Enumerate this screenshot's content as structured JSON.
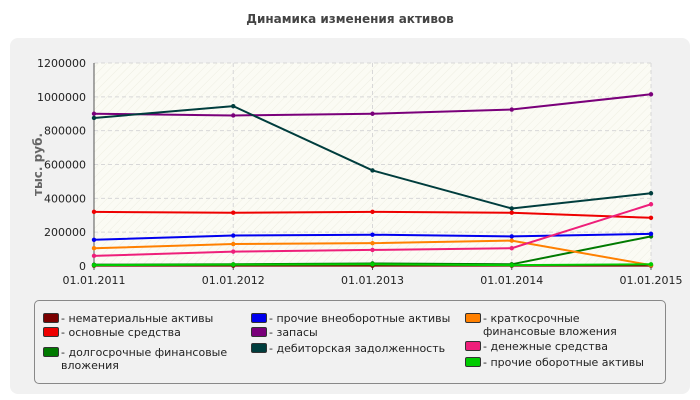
{
  "chart_data": {
    "type": "line",
    "title": "Динамика изменения активов",
    "xlabel": "",
    "ylabel": "тыс. руб.",
    "x": [
      "01.01.2011",
      "01.01.2012",
      "01.01.2013",
      "01.01.2014",
      "01.01.2015"
    ],
    "ylim": [
      0,
      1200000
    ],
    "yticks": [
      "0",
      "200000",
      "400000",
      "600000",
      "800000",
      "1000000",
      "1200000"
    ],
    "grid": true,
    "legend_position": "bottom",
    "series": [
      {
        "name": "- нематериальные активы",
        "color": "#7a0000",
        "values": [
          2000,
          2000,
          2000,
          2000,
          2000
        ]
      },
      {
        "name": "- основные средства",
        "color": "#ee0000",
        "values": [
          320000,
          315000,
          320000,
          315000,
          285000
        ]
      },
      {
        "name": "- долгосрочные финансовые вложения",
        "color": "#007a00",
        "values": [
          8000,
          10000,
          15000,
          10000,
          175000
        ]
      },
      {
        "name": "- прочие внеоборотные активы",
        "color": "#0000ee",
        "values": [
          155000,
          180000,
          185000,
          175000,
          190000
        ]
      },
      {
        "name": "- запасы",
        "color": "#7a007a",
        "values": [
          900000,
          890000,
          900000,
          925000,
          1015000
        ]
      },
      {
        "name": "- дебиторская задолженность",
        "color": "#003d3d",
        "values": [
          875000,
          945000,
          565000,
          340000,
          430000
        ]
      },
      {
        "name": "- краткосрочные финансовые вложения",
        "color": "#ff8000",
        "values": [
          105000,
          130000,
          135000,
          150000,
          5000
        ]
      },
      {
        "name": "- денежные средства",
        "color": "#ee1f7a",
        "values": [
          60000,
          85000,
          95000,
          105000,
          365000
        ]
      },
      {
        "name": "- прочие оборотные активы",
        "color": "#00cc00",
        "values": [
          5000,
          8000,
          10000,
          5000,
          10000
        ]
      }
    ]
  }
}
